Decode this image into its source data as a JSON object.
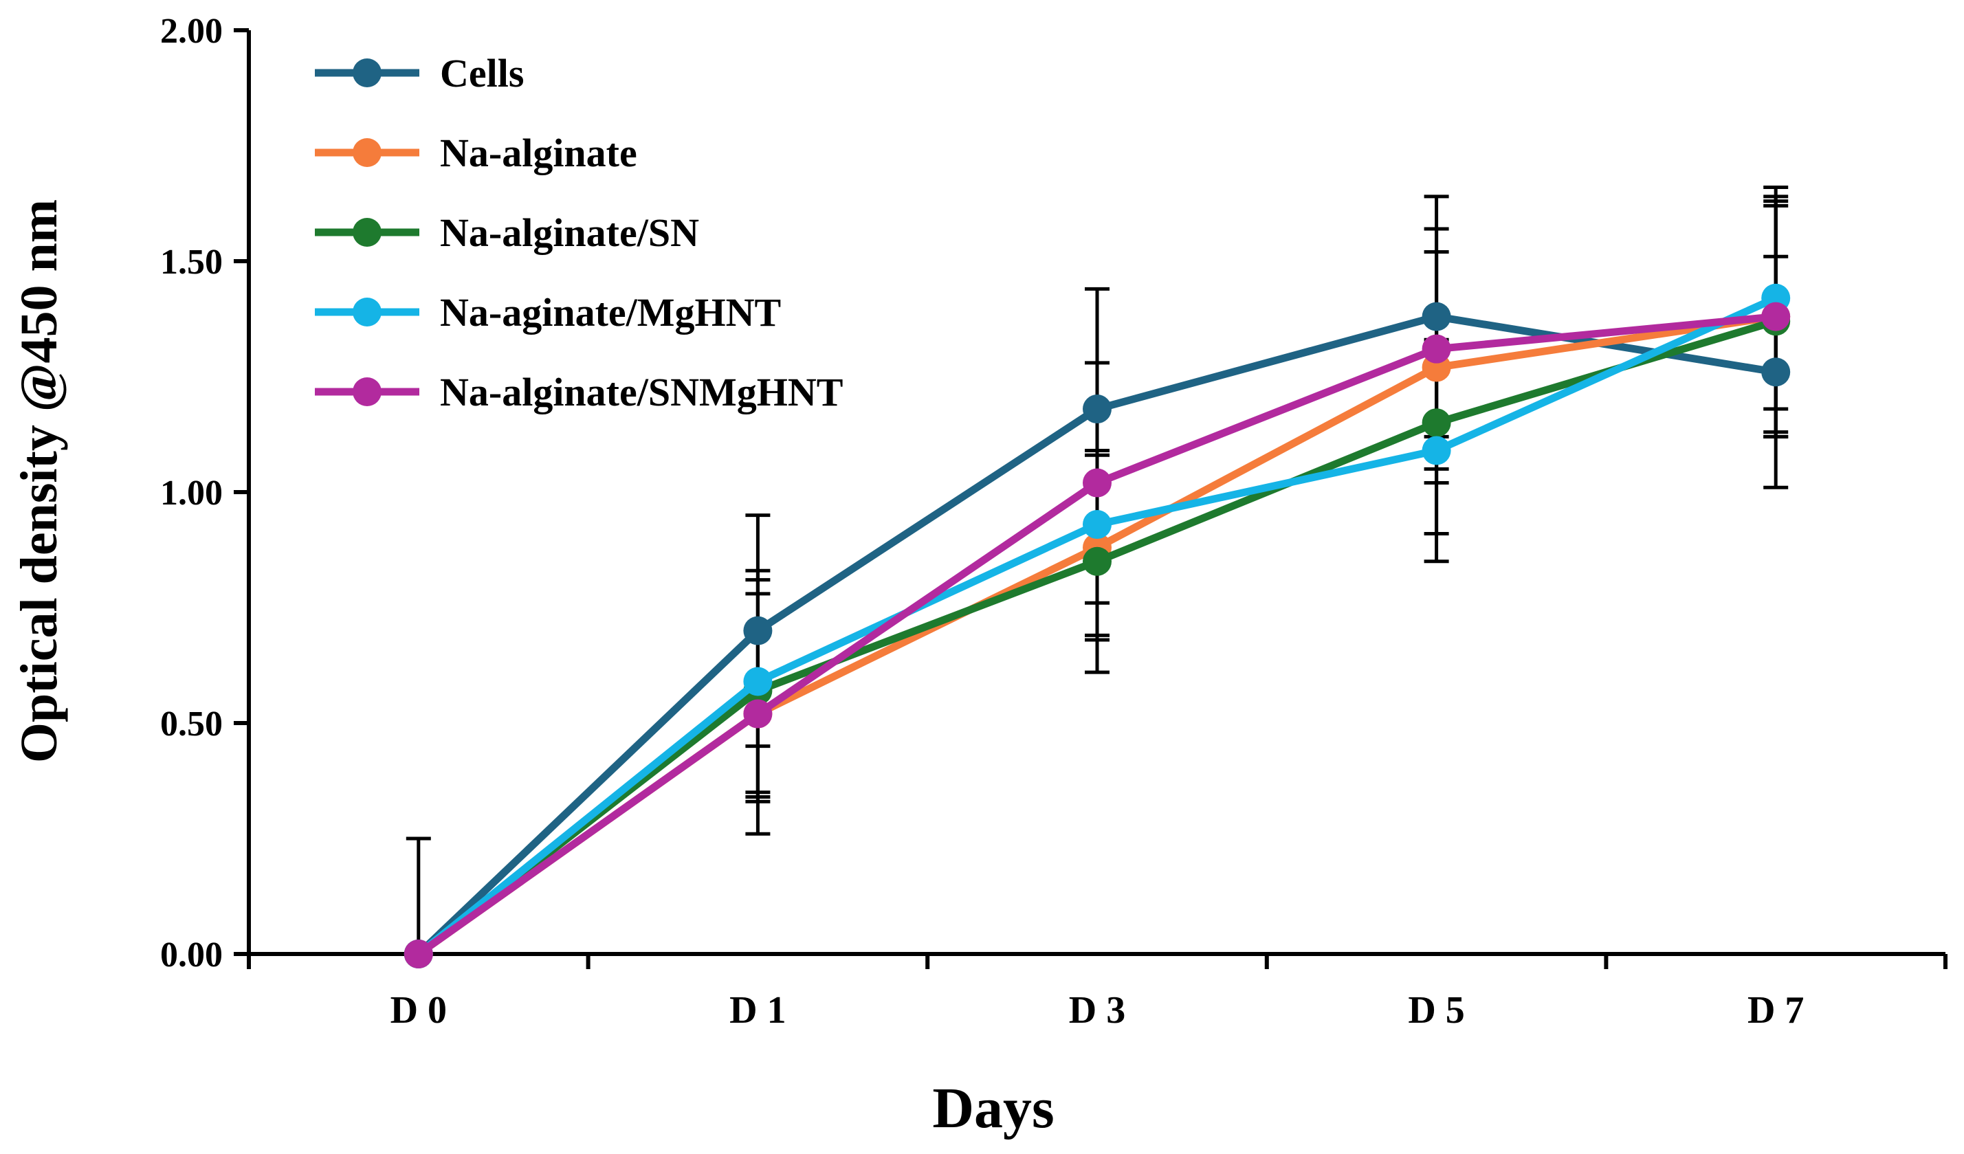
{
  "chart_data": {
    "type": "line",
    "title": "",
    "xlabel": "Days",
    "ylabel": "Optical density @450 nm",
    "categories": [
      "D 0",
      "D 1",
      "D 3",
      "D 5",
      "D 7"
    ],
    "ylim": [
      0,
      2
    ],
    "yticks": [
      0,
      0.5,
      1,
      1.5,
      2
    ],
    "ytick_labels": [
      "0.00",
      "0.50",
      "1.00",
      "1.50",
      "2.00"
    ],
    "legend_position": "top-left",
    "grid": false,
    "series": [
      {
        "name": "Cells",
        "color": "#1f6384",
        "values": [
          0,
          0.7,
          1.18,
          1.38,
          1.26
        ],
        "errors": [
          0.25,
          0.25,
          0.26,
          0.26,
          0.25
        ]
      },
      {
        "name": "Na-alginate",
        "color": "#f57c3b",
        "values": [
          0,
          0.52,
          0.88,
          1.27,
          1.38
        ],
        "errors": [
          0,
          0.18,
          0.2,
          0.25,
          0.25
        ]
      },
      {
        "name": "Na-alginate/SN",
        "color": "#1e7a2e",
        "values": [
          0,
          0.57,
          0.85,
          1.15,
          1.37
        ],
        "errors": [
          0,
          0.24,
          0.24,
          0.24,
          0.25
        ]
      },
      {
        "name": "Na-aginate/MgHNT",
        "color": "#15b4e6",
        "values": [
          0,
          0.59,
          0.93,
          1.09,
          1.42
        ],
        "errors": [
          0,
          0.24,
          0.24,
          0.24,
          0.24
        ]
      },
      {
        "name": "Na-alginate/SNMgHNT",
        "color": "#b22a9e",
        "values": [
          0,
          0.52,
          1.02,
          1.31,
          1.38
        ],
        "errors": [
          0,
          0.26,
          0.26,
          0.26,
          0.26
        ]
      }
    ]
  }
}
